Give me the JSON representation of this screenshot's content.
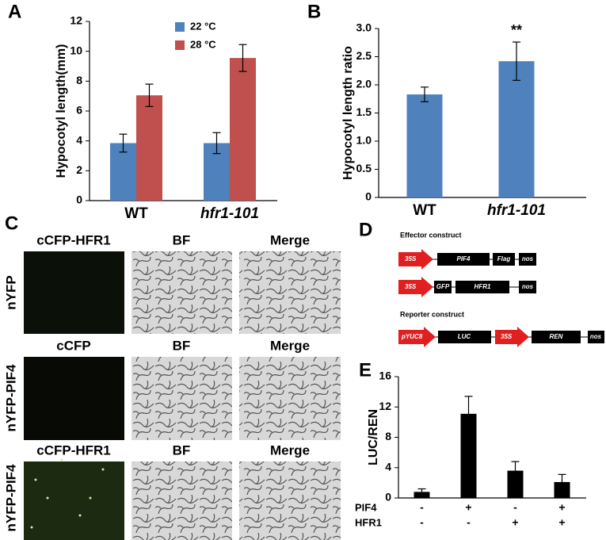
{
  "chart_data": [
    {
      "type": "bar",
      "ylabel": "Hypocotyl length(mm)",
      "categories": [
        "WT",
        "hfr1-101"
      ],
      "series": [
        {
          "name": "22 °C",
          "color": "#4f81bd",
          "values": [
            3.85,
            3.85
          ],
          "errors": [
            0.6,
            0.7
          ]
        },
        {
          "name": "28 °C",
          "color": "#c0504d",
          "values": [
            7.05,
            9.55
          ],
          "errors": [
            0.75,
            0.9
          ]
        }
      ],
      "ylim": [
        0,
        12
      ],
      "yticks": [
        0,
        2,
        4,
        6,
        8,
        10,
        12
      ]
    },
    {
      "type": "bar",
      "ylabel": "Hypocotyl length ratio",
      "categories": [
        "WT",
        "hfr1-101"
      ],
      "values": [
        1.83,
        2.42
      ],
      "errors": [
        0.13,
        0.34
      ],
      "color": "#4f81bd",
      "annotation": "**",
      "ylim": [
        0,
        3
      ],
      "yticks": [
        0,
        0.5,
        {
          "value": 1,
          "label": "1.0"
        },
        1.5,
        {
          "value": 2,
          "label": "2.0"
        },
        2.5,
        {
          "value": 3,
          "label": "3.0"
        }
      ]
    },
    {
      "type": "bar",
      "ylabel": "LUC/REN",
      "values": [
        0.8,
        11.1,
        3.6,
        2.1
      ],
      "errors": [
        0.4,
        2.3,
        1.2,
        1.0
      ],
      "color": "#000000",
      "factors": [
        {
          "name": "PIF4",
          "signs": [
            "-",
            "+",
            "-",
            "+"
          ]
        },
        {
          "name": "HFR1",
          "signs": [
            "-",
            "-",
            "+",
            "+"
          ]
        }
      ],
      "ylim": [
        0,
        16
      ],
      "yticks": [
        0,
        4,
        8,
        12,
        16
      ]
    }
  ],
  "panel_labels": [
    "A",
    "B",
    "C",
    "D",
    "E"
  ],
  "microscopy": {
    "rows": [
      {
        "label": "nYFP",
        "columns": [
          "cCFP-HFR1",
          "BF",
          "Merge"
        ]
      },
      {
        "label": "nYFP-PIF4",
        "columns": [
          "cCFP",
          "BF",
          "Merge"
        ]
      },
      {
        "label": "nYFP-PIF4",
        "columns": [
          "cCFP-HFR1",
          "BF",
          "Merge"
        ]
      }
    ]
  },
  "constructs": {
    "effector_title": "Effector construct",
    "effector": [
      [
        "35S",
        "PIF4",
        "Flag",
        "nos"
      ],
      [
        "35S",
        "GFP",
        "HFR1",
        "nos"
      ]
    ],
    "reporter_title": "Reporter construct",
    "reporter": [
      [
        "pYUC8",
        "LUC",
        "35S",
        "REN",
        "nos"
      ]
    ]
  }
}
